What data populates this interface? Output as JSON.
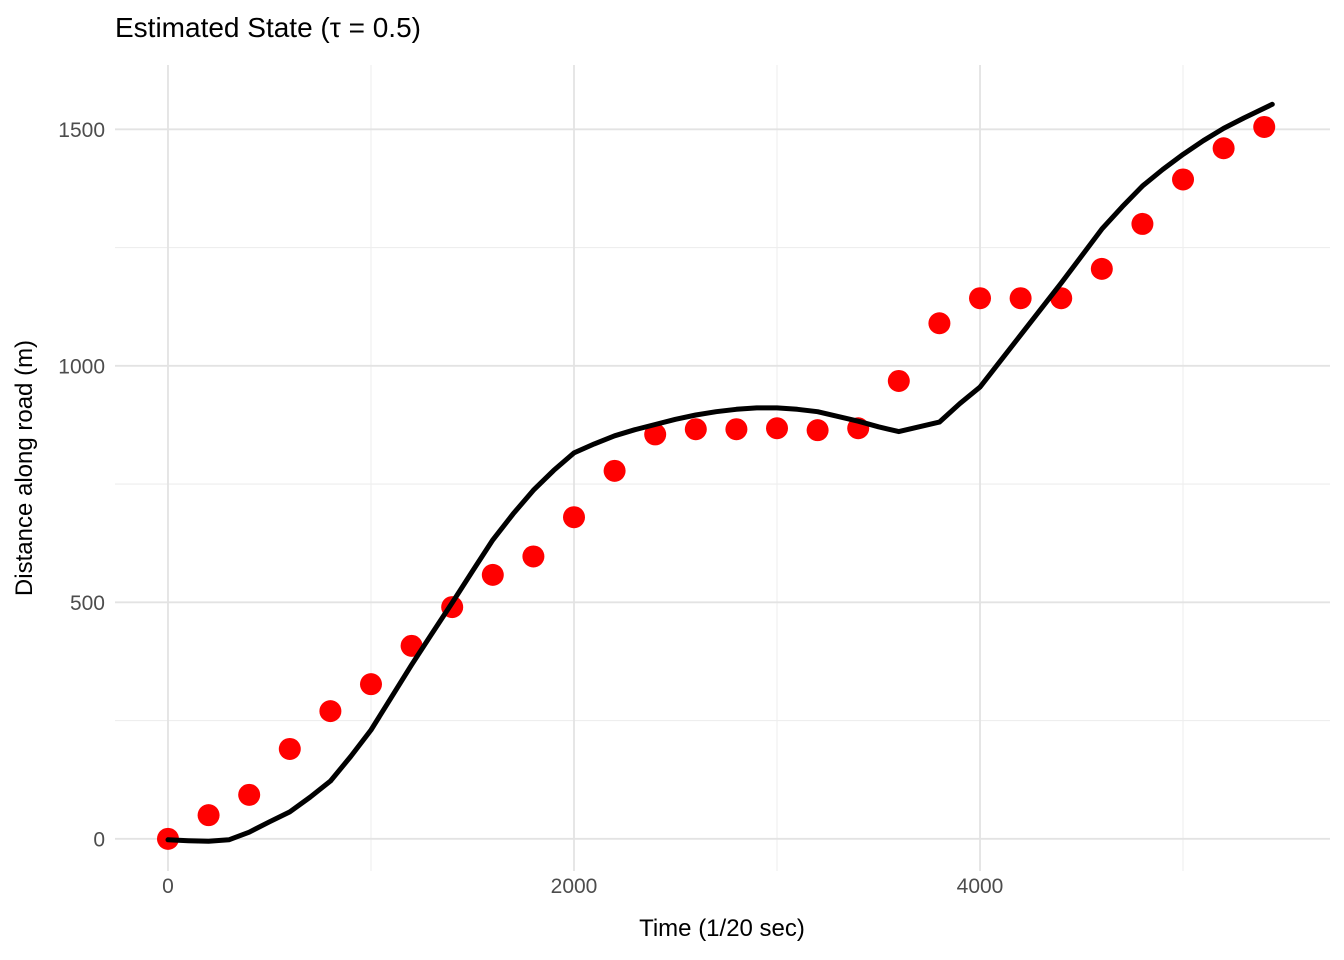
{
  "chart_data": {
    "type": "scatter+line",
    "title": "Estimated State (τ = 0.5)",
    "xlabel": "Time (1/20 sec)",
    "ylabel": "Distance along road (m)",
    "xlim": [
      -261,
      5724
    ],
    "ylim": [
      -68,
      1636
    ],
    "x_major_ticks": [
      0,
      2000,
      4000
    ],
    "x_minor_ticks": [
      1000,
      3000,
      5000
    ],
    "y_major_ticks": [
      0,
      500,
      1000,
      1500
    ],
    "y_minor_ticks": [
      250,
      750,
      1250
    ],
    "grid": "major+minor",
    "legend_position": "none",
    "background_color": "#ffffff",
    "major_grid_color": "#e3e3e3",
    "minor_grid_color": "#eeeeee",
    "tick_label_color": "#4d4d4d",
    "series": [
      {
        "name": "observations",
        "type": "scatter",
        "color": "#ff0000",
        "marker_radius": 11,
        "points": [
          [
            0,
            0
          ],
          [
            200,
            50
          ],
          [
            400,
            93
          ],
          [
            600,
            190
          ],
          [
            800,
            270
          ],
          [
            1000,
            327
          ],
          [
            1200,
            408
          ],
          [
            1400,
            490
          ],
          [
            1600,
            558
          ],
          [
            1800,
            597
          ],
          [
            2000,
            680
          ],
          [
            2200,
            778
          ],
          [
            2400,
            855
          ],
          [
            2600,
            866
          ],
          [
            2800,
            866
          ],
          [
            3000,
            868
          ],
          [
            3200,
            864
          ],
          [
            3400,
            868
          ],
          [
            3600,
            968
          ],
          [
            3800,
            1090
          ],
          [
            4000,
            1143
          ],
          [
            4200,
            1143
          ],
          [
            4400,
            1143
          ],
          [
            4600,
            1205
          ],
          [
            4800,
            1300
          ],
          [
            5000,
            1394
          ],
          [
            5200,
            1460
          ],
          [
            5400,
            1505
          ]
        ]
      },
      {
        "name": "estimated-state-line",
        "type": "line",
        "color": "#000000",
        "line_width": 5,
        "points": [
          [
            0,
            -2
          ],
          [
            100,
            -4
          ],
          [
            200,
            -5
          ],
          [
            300,
            -2
          ],
          [
            400,
            14
          ],
          [
            500,
            36
          ],
          [
            600,
            57
          ],
          [
            700,
            88
          ],
          [
            800,
            122
          ],
          [
            900,
            174
          ],
          [
            1000,
            230
          ],
          [
            1100,
            299
          ],
          [
            1200,
            368
          ],
          [
            1300,
            434
          ],
          [
            1400,
            499
          ],
          [
            1500,
            566
          ],
          [
            1600,
            632
          ],
          [
            1700,
            687
          ],
          [
            1800,
            737
          ],
          [
            1900,
            779
          ],
          [
            2000,
            816
          ],
          [
            2100,
            835
          ],
          [
            2200,
            852
          ],
          [
            2300,
            865
          ],
          [
            2400,
            876
          ],
          [
            2500,
            887
          ],
          [
            2600,
            896
          ],
          [
            2700,
            903
          ],
          [
            2800,
            908
          ],
          [
            2900,
            911
          ],
          [
            3000,
            911
          ],
          [
            3100,
            908
          ],
          [
            3200,
            903
          ],
          [
            3300,
            893
          ],
          [
            3400,
            883
          ],
          [
            3500,
            871
          ],
          [
            3600,
            861
          ],
          [
            3700,
            871
          ],
          [
            3800,
            881
          ],
          [
            3900,
            920
          ],
          [
            4000,
            955
          ],
          [
            4100,
            1010
          ],
          [
            4200,
            1065
          ],
          [
            4300,
            1120
          ],
          [
            4400,
            1175
          ],
          [
            4500,
            1232
          ],
          [
            4600,
            1289
          ],
          [
            4700,
            1336
          ],
          [
            4800,
            1380
          ],
          [
            4900,
            1415
          ],
          [
            5000,
            1447
          ],
          [
            5100,
            1476
          ],
          [
            5200,
            1502
          ],
          [
            5300,
            1524
          ],
          [
            5440,
            1553
          ]
        ]
      }
    ]
  }
}
